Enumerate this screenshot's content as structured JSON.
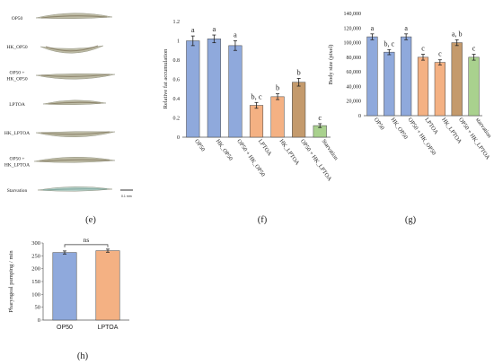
{
  "panel_e": {
    "rows": [
      "OP50",
      "HK_OP50",
      "OP50 +|HK_OP50",
      "LPTOA",
      "HK_LPTOA",
      "OP50 +|HK_LPTOA",
      "Starvation"
    ],
    "scale_bar": "0.1 mm",
    "caption": "(e)"
  },
  "panel_f_caption": "(f)",
  "panel_g_caption": "(g)",
  "panel_h_caption": "(h)",
  "colors": {
    "blue": "#8fa9dc",
    "orange": "#f4b183",
    "brown": "#c49a6c",
    "green": "#a9d18e",
    "axis": "#555555",
    "error": "#222222"
  },
  "chart_data": [
    {
      "type": "bar",
      "panel": "f",
      "ylabel": "Relative fat accumulation",
      "ylim": [
        0,
        1.2
      ],
      "yticks": [
        "0",
        "0.2",
        "0.4",
        "0.6",
        "0.8",
        "1",
        "1.2"
      ],
      "categories": [
        "OP50",
        "HK_OP50",
        "OP50 + HK_OP50",
        "LPTOA",
        "HK_LPTOA",
        "OP50 + HK_LPTOA",
        "Starvation"
      ],
      "values": [
        1.0,
        1.02,
        0.95,
        0.33,
        0.42,
        0.57,
        0.12
      ],
      "errors": [
        0.05,
        0.04,
        0.05,
        0.03,
        0.03,
        0.04,
        0.02
      ],
      "labels": [
        "a",
        "a",
        "a",
        "b, c",
        "b",
        "b",
        "c"
      ],
      "bar_colors": [
        "#8fa9dc",
        "#8fa9dc",
        "#8fa9dc",
        "#f4b183",
        "#f4b183",
        "#c49a6c",
        "#a9d18e"
      ]
    },
    {
      "type": "bar",
      "panel": "g",
      "ylabel": "Body size (pixel)",
      "ylim": [
        0,
        140000
      ],
      "yticks": [
        "0",
        "20,000",
        "40,000",
        "60,000",
        "80,000",
        "100,000",
        "120,000",
        "140,000"
      ],
      "categories": [
        "OP50",
        "HK_OP50",
        "OP50 + HK_OP50",
        "LPTOA",
        "HK_LPTOA",
        "OP50 + HK_LPTOA",
        "starvation"
      ],
      "values": [
        108000,
        87000,
        108000,
        80000,
        73000,
        100000,
        80000
      ],
      "errors": [
        4000,
        3500,
        4000,
        4000,
        3500,
        4000,
        4000
      ],
      "labels": [
        "a",
        "b, c",
        "a",
        "c",
        "c",
        "a, b",
        "c"
      ],
      "bar_colors": [
        "#8fa9dc",
        "#8fa9dc",
        "#8fa9dc",
        "#f4b183",
        "#f4b183",
        "#c49a6c",
        "#a9d18e"
      ]
    },
    {
      "type": "bar",
      "panel": "h",
      "ylabel": "Pharyngeal pumping / min",
      "ylim": [
        0,
        300
      ],
      "yticks": [
        "0",
        "50",
        "100",
        "150",
        "200",
        "250",
        "300"
      ],
      "categories": [
        "OP50",
        "LPTOA"
      ],
      "values": [
        263,
        270
      ],
      "errors": [
        6,
        6
      ],
      "significance": "ns",
      "bar_colors": [
        "#8fa9dc",
        "#f4b183"
      ]
    }
  ]
}
